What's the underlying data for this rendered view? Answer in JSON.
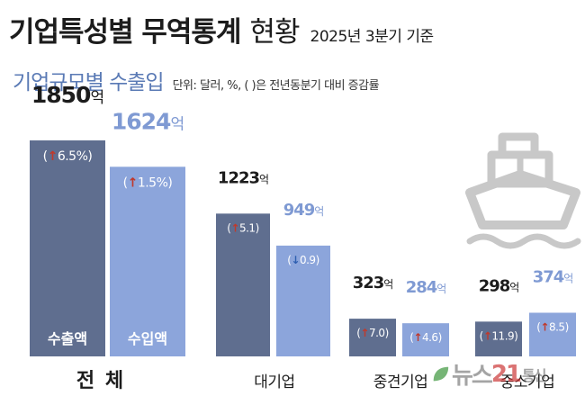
{
  "header": {
    "title": "기업특성별 무역통계",
    "title_suffix": "현황",
    "date_note": "2025년 3분기 기준"
  },
  "subtitle": "기업규모별 수출입",
  "unit_note": "단위: 달러, %, ( )은 전년동분기 대비 증감률",
  "watermark": {
    "text_a": "뉴스",
    "text_num": "21",
    "text_b": "통신"
  },
  "colors": {
    "export": "#5f6e8f",
    "import": "#8ca5db",
    "export_label": "#1c1c1c",
    "import_label": "#7f9ad3",
    "up_arrow": "#c0392b",
    "down_arrow": "#2e5fb0",
    "ship": "#c8c8c8"
  },
  "icons": {
    "ship": "ship-icon",
    "up": "up-arrow-icon",
    "down": "down-arrow-icon"
  },
  "chart_data": {
    "type": "bar",
    "title": "기업규모별 수출입",
    "value_unit": "억",
    "categories": [
      "전 체",
      "대기업",
      "중견기업",
      "중소기업"
    ],
    "series": [
      {
        "name": "수출액",
        "values": [
          1850,
          1223,
          323,
          298
        ],
        "labels": [
          "1850",
          "1223",
          "323",
          "298"
        ],
        "change": [
          "6.5%",
          "5.1",
          "7.0",
          "11.9"
        ],
        "direction": [
          "up",
          "up",
          "up",
          "up"
        ]
      },
      {
        "name": "수입액",
        "values": [
          1624,
          949,
          284,
          374
        ],
        "labels": [
          "1624",
          "949",
          "284",
          "374"
        ],
        "change": [
          "1.5%",
          "0.9",
          "4.6",
          "8.5"
        ],
        "direction": [
          "up",
          "down",
          "up",
          "up"
        ]
      }
    ],
    "grid": false,
    "legend": "inside-bars"
  }
}
